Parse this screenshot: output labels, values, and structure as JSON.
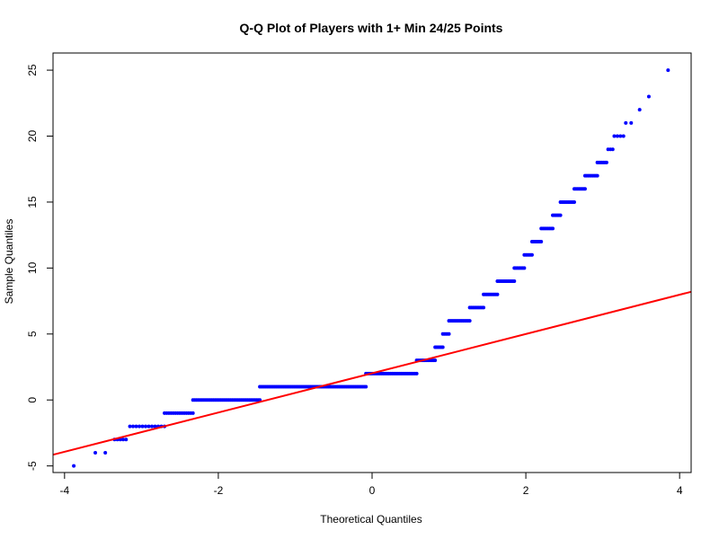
{
  "chart_data": {
    "type": "scatter",
    "title": "Q-Q Plot of Players with 1+ Min 24/25 Points",
    "xlabel": "Theoretical Quantiles",
    "ylabel": "Sample Quantiles",
    "xlim": [
      -4.15,
      4.15
    ],
    "ylim": [
      -5.5,
      26.3
    ],
    "x_ticks": [
      -4,
      -2,
      0,
      2,
      4
    ],
    "y_ticks": [
      -5,
      0,
      5,
      10,
      15,
      20,
      25
    ],
    "grid": false,
    "legend": "none",
    "colors": {
      "points": "#0000ff",
      "line": "#ff0000",
      "frame": "#000000"
    },
    "reference_line": {
      "x": [
        -4.15,
        4.15
      ],
      "y": [
        -4.15,
        8.2
      ]
    },
    "series": [
      {
        "runs": [
          {
            "y": -5,
            "x_start": -3.88,
            "x_end": -3.88,
            "count": 1
          },
          {
            "y": -4,
            "x_start": -3.6,
            "x_end": -3.6,
            "count": 1
          },
          {
            "y": -4,
            "x_start": -3.47,
            "x_end": -3.47,
            "count": 1
          },
          {
            "y": -3,
            "x_start": -3.35,
            "x_end": -3.2,
            "count": 5
          },
          {
            "y": -2,
            "x_start": -3.15,
            "x_end": -2.7,
            "count": 12
          },
          {
            "y": -1,
            "x_start": -2.7,
            "x_end": -2.33,
            "count": 14
          },
          {
            "y": 0,
            "x_start": -2.33,
            "x_end": -1.46,
            "count": 40
          },
          {
            "y": 1,
            "x_start": -1.46,
            "x_end": -0.08,
            "count": 60
          },
          {
            "y": 2,
            "x_start": -0.08,
            "x_end": 0.58,
            "count": 30
          },
          {
            "y": 3,
            "x_start": 0.58,
            "x_end": 0.82,
            "count": 12
          },
          {
            "y": 4,
            "x_start": 0.82,
            "x_end": 0.92,
            "count": 6
          },
          {
            "y": 5,
            "x_start": 0.92,
            "x_end": 1.0,
            "count": 5
          },
          {
            "y": 6,
            "x_start": 1.0,
            "x_end": 1.27,
            "count": 14
          },
          {
            "y": 7,
            "x_start": 1.27,
            "x_end": 1.45,
            "count": 10
          },
          {
            "y": 8,
            "x_start": 1.45,
            "x_end": 1.63,
            "count": 10
          },
          {
            "y": 9,
            "x_start": 1.63,
            "x_end": 1.85,
            "count": 12
          },
          {
            "y": 10,
            "x_start": 1.85,
            "x_end": 1.98,
            "count": 8
          },
          {
            "y": 11,
            "x_start": 1.98,
            "x_end": 2.08,
            "count": 6
          },
          {
            "y": 12,
            "x_start": 2.08,
            "x_end": 2.2,
            "count": 7
          },
          {
            "y": 13,
            "x_start": 2.2,
            "x_end": 2.35,
            "count": 8
          },
          {
            "y": 14,
            "x_start": 2.35,
            "x_end": 2.45,
            "count": 6
          },
          {
            "y": 15,
            "x_start": 2.45,
            "x_end": 2.63,
            "count": 10
          },
          {
            "y": 16,
            "x_start": 2.63,
            "x_end": 2.77,
            "count": 8
          },
          {
            "y": 17,
            "x_start": 2.77,
            "x_end": 2.93,
            "count": 9
          },
          {
            "y": 18,
            "x_start": 2.93,
            "x_end": 3.05,
            "count": 7
          },
          {
            "y": 19,
            "x_start": 3.07,
            "x_end": 3.13,
            "count": 3
          },
          {
            "y": 20,
            "x_start": 3.15,
            "x_end": 3.27,
            "count": 4
          },
          {
            "y": 21,
            "x_start": 3.3,
            "x_end": 3.37,
            "count": 2
          },
          {
            "y": 22,
            "x_start": 3.48,
            "x_end": 3.48,
            "count": 1
          },
          {
            "y": 23,
            "x_start": 3.6,
            "x_end": 3.6,
            "count": 1
          },
          {
            "y": 25,
            "x_start": 3.85,
            "x_end": 3.85,
            "count": 1
          }
        ]
      }
    ]
  }
}
